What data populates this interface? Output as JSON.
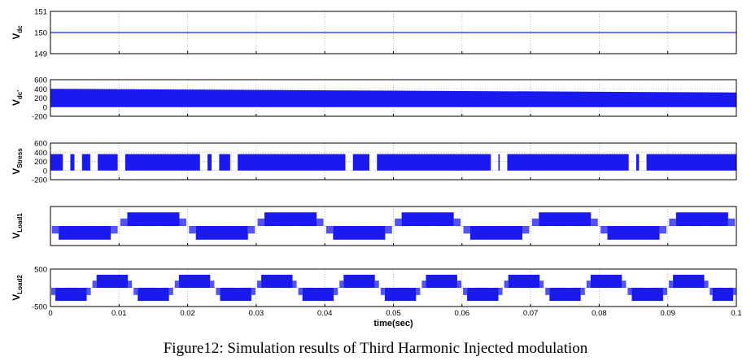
{
  "caption": "Figure12: Simulation results of Third Harmonic Injected modulation",
  "colors": {
    "signal": "#1a1aee",
    "axis": "#000000",
    "grid": "#b8b8b8"
  },
  "chart_data": {
    "type": "line",
    "xlabel": "time(sec)",
    "xlim": [
      0,
      0.1
    ],
    "xticks": [
      "0",
      "0.01",
      "0.02",
      "0.03",
      "0.04",
      "0.05",
      "0.06",
      "0.07",
      "0.08",
      "0.09",
      "0.1"
    ],
    "grid": true,
    "panels": [
      {
        "ylabel_main": "V",
        "ylabel_sub": "dc",
        "ylim": [
          149,
          151
        ],
        "yticks": [
          "151",
          "150",
          "149"
        ],
        "kind": "constant",
        "value": 150
      },
      {
        "ylabel_main": "V",
        "ylabel_sub": "dc'",
        "ylim": [
          -200,
          600
        ],
        "yticks": [
          "600",
          "400",
          "200",
          "0",
          "-200"
        ],
        "kind": "band",
        "low": 0,
        "high_start": 400,
        "high_end": 320
      },
      {
        "ylabel_main": "V",
        "ylabel_sub": "Stress",
        "ylim": [
          -200,
          600
        ],
        "yticks": [
          "600",
          "400",
          "200",
          "0",
          "-200"
        ],
        "kind": "gapped_band",
        "low": 0,
        "high": 360,
        "gaps": [
          0.0018,
          0.0035,
          0.0058,
          0.0098,
          0.0218,
          0.0235,
          0.0262,
          0.043,
          0.0465,
          0.0642,
          0.0655,
          0.0843,
          0.0858
        ]
      },
      {
        "ylabel_main": "V",
        "ylabel_sub": "Load1",
        "ylim": [
          -500,
          500
        ],
        "yticks": [],
        "kind": "stepped_wave",
        "amplitude": 350,
        "frequency": 50,
        "phase": 0.0
      },
      {
        "ylabel_main": "V",
        "ylabel_sub": "Load2",
        "ylim": [
          -500,
          500
        ],
        "yticks": [
          "500",
          "",
          "-500"
        ],
        "kind": "stepped_wave",
        "amplitude": 350,
        "frequency": 83.3,
        "phase": 0.0
      }
    ]
  }
}
